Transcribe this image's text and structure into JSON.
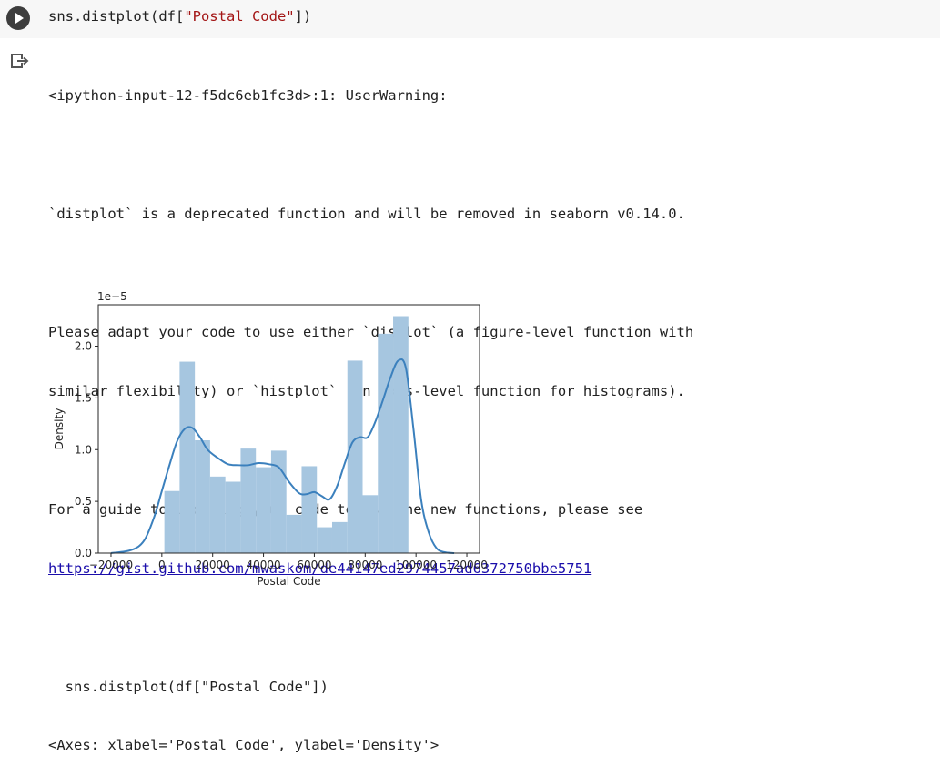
{
  "code_cell": {
    "code_prefix": "sns.distplot(df[",
    "code_string": "\"Postal Code\"",
    "code_suffix": "])"
  },
  "output": {
    "warning_header": "<ipython-input-12-f5dc6eb1fc3d>:1: UserWarning:",
    "line_deprecated": "`distplot` is a deprecated function and will be removed in seaborn v0.14.0.",
    "line_adapt_1": "Please adapt your code to use either `displot` (a figure-level function with",
    "line_adapt_2": "similar flexibility) or `histplot` (an axes-level function for histograms).",
    "line_guide": "For a guide to updating your code to use the new functions, please see",
    "guide_link": "https://gist.github.com/mwaskom/de44147ed2974457ad6372750bbe5751",
    "echo_line": "  sns.distplot(df[\"Postal Code\"])",
    "axes_repr": "<Axes: xlabel='Postal Code', ylabel='Density'>"
  },
  "chart_data": {
    "type": "histogram",
    "xlabel": "Postal Code",
    "ylabel": "Density",
    "y_offset_text": "1e−5",
    "xlim": [
      -25000,
      125000
    ],
    "ylim": [
      0,
      2.4
    ],
    "xticks": [
      -20000,
      0,
      20000,
      40000,
      60000,
      80000,
      100000,
      120000
    ],
    "xtick_labels": [
      "−20000",
      "0",
      "20000",
      "40000",
      "60000",
      "80000",
      "100000",
      "120000"
    ],
    "yticks": [
      0,
      0.5,
      1.0,
      1.5,
      2.0
    ],
    "ytick_labels": [
      "0.0",
      "0.5",
      "1.0",
      "1.5",
      "2.0"
    ],
    "bar_color": "#a6c6e0",
    "kde_color": "#3b80bd",
    "bins": [
      {
        "x0": 1000,
        "x1": 7000,
        "density": 0.6
      },
      {
        "x0": 7000,
        "x1": 13000,
        "density": 1.85
      },
      {
        "x0": 13000,
        "x1": 19000,
        "density": 1.09
      },
      {
        "x0": 19000,
        "x1": 25000,
        "density": 0.74
      },
      {
        "x0": 25000,
        "x1": 31000,
        "density": 0.69
      },
      {
        "x0": 31000,
        "x1": 37000,
        "density": 1.01
      },
      {
        "x0": 37000,
        "x1": 43000,
        "density": 0.83
      },
      {
        "x0": 43000,
        "x1": 49000,
        "density": 0.99
      },
      {
        "x0": 49000,
        "x1": 55000,
        "density": 0.37
      },
      {
        "x0": 55000,
        "x1": 61000,
        "density": 0.84
      },
      {
        "x0": 61000,
        "x1": 67000,
        "density": 0.25
      },
      {
        "x0": 67000,
        "x1": 73000,
        "density": 0.3
      },
      {
        "x0": 73000,
        "x1": 79000,
        "density": 1.86
      },
      {
        "x0": 79000,
        "x1": 85000,
        "density": 0.56
      },
      {
        "x0": 85000,
        "x1": 91000,
        "density": 2.12
      },
      {
        "x0": 91000,
        "x1": 97000,
        "density": 2.29
      }
    ],
    "kde": {
      "x": [
        -20000,
        -12000,
        -7000,
        -3000,
        0,
        3000,
        6000,
        9000,
        12000,
        15000,
        18000,
        22000,
        26000,
        30000,
        34000,
        38000,
        42000,
        46000,
        50000,
        54000,
        57000,
        60000,
        63000,
        66000,
        69000,
        72000,
        75000,
        78000,
        81000,
        84000,
        87000,
        90000,
        93000,
        96000,
        99000,
        102000,
        105000,
        108000,
        111000,
        115000
      ],
      "y": [
        0.0,
        0.03,
        0.12,
        0.35,
        0.6,
        0.85,
        1.08,
        1.2,
        1.21,
        1.12,
        1.0,
        0.92,
        0.86,
        0.85,
        0.85,
        0.87,
        0.86,
        0.83,
        0.69,
        0.58,
        0.57,
        0.59,
        0.55,
        0.52,
        0.65,
        0.87,
        1.07,
        1.12,
        1.12,
        1.27,
        1.48,
        1.7,
        1.86,
        1.79,
        1.2,
        0.52,
        0.2,
        0.05,
        0.01,
        0.0
      ]
    }
  }
}
